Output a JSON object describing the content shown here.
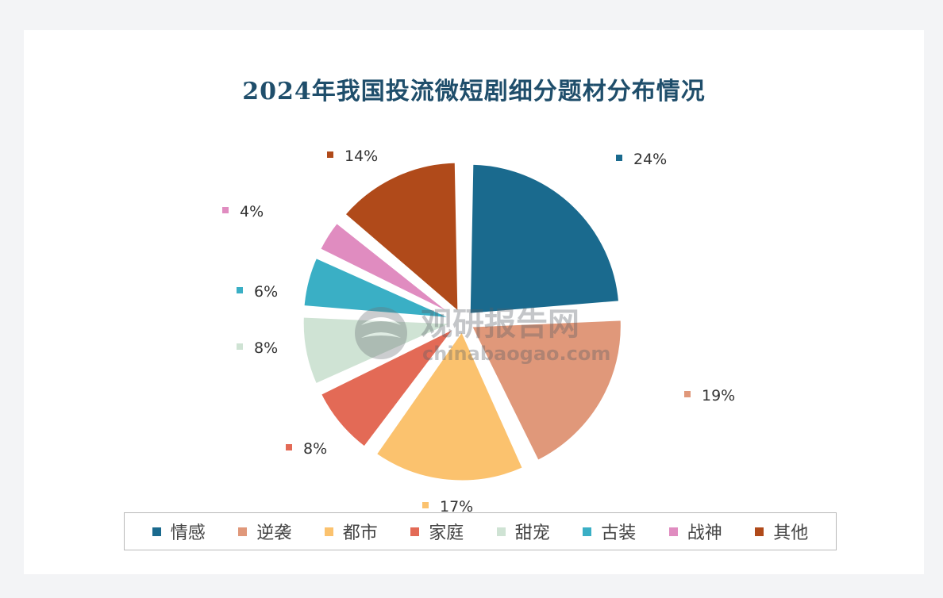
{
  "chart_data": {
    "type": "pie",
    "title": "2024年我国投流微短剧细分题材分布情况",
    "slices": [
      {
        "name": "情感",
        "value": 24,
        "label": "24%",
        "color": "#1a6a8e"
      },
      {
        "name": "逆袭",
        "value": 19,
        "label": "19%",
        "color": "#e0987a"
      },
      {
        "name": "都市",
        "value": 17,
        "label": "17%",
        "color": "#fbc26e"
      },
      {
        "name": "家庭",
        "value": 8,
        "label": "8%",
        "color": "#e36a56"
      },
      {
        "name": "甜宠",
        "value": 8,
        "label": "8%",
        "color": "#cfe3d4"
      },
      {
        "name": "古装",
        "value": 6,
        "label": "6%",
        "color": "#3aafc5"
      },
      {
        "name": "战神",
        "value": 4,
        "label": "4%",
        "color": "#e08cc0"
      },
      {
        "name": "其他",
        "value": 14,
        "label": "14%",
        "color": "#b04a1a"
      }
    ],
    "legend_position": "bottom"
  },
  "watermark": {
    "cn": "观研报告网",
    "en": "chinabaogao.com"
  }
}
